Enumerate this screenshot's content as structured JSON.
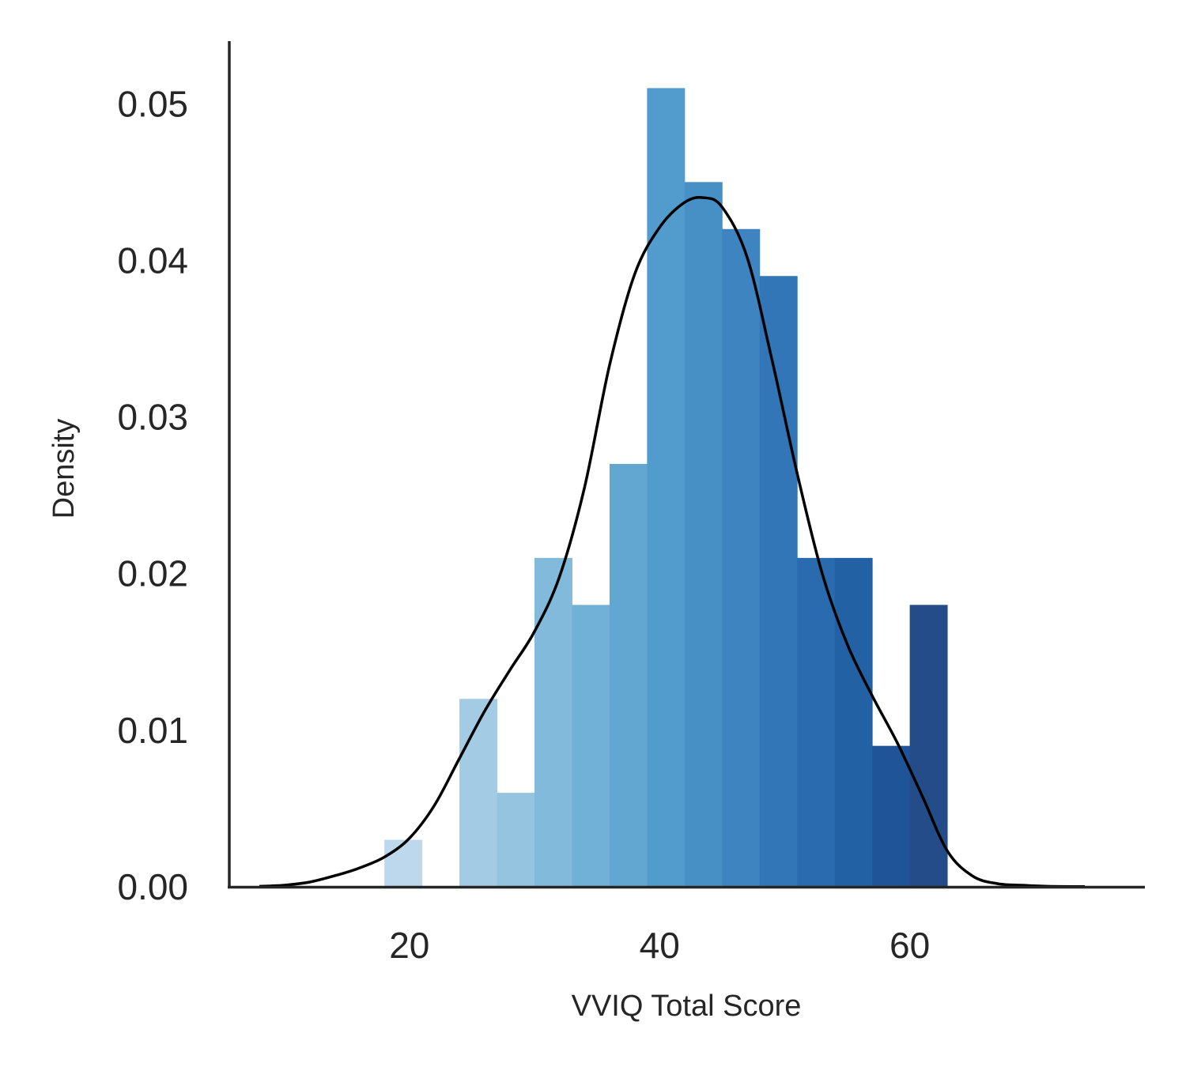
{
  "chart_data": {
    "type": "bar",
    "subtype": "histogram_with_kde",
    "xlabel": "VVIQ Total Score",
    "ylabel": "Density",
    "xlim": [
      5.6,
      78.8
    ],
    "ylim": [
      0,
      0.054
    ],
    "x_ticks": [
      20,
      40,
      60
    ],
    "y_ticks": [
      "0.00",
      "0.01",
      "0.02",
      "0.03",
      "0.04",
      "0.05"
    ],
    "grid": false,
    "bin_edges": [
      18.0,
      21.0,
      24.0,
      27.0,
      30.0,
      33.0,
      36.0,
      39.0,
      42.0,
      45.0,
      48.0,
      51.0,
      54.0,
      57.0,
      60.0,
      63.0
    ],
    "values": [
      0.003,
      0.0,
      0.012,
      0.006,
      0.021,
      0.018,
      0.027,
      0.051,
      0.045,
      0.042,
      0.039,
      0.021,
      0.021,
      0.009,
      0.018
    ],
    "bar_colors": [
      "#bdd7ec",
      "#ffffff",
      "#a3cbe3",
      "#94c4df",
      "#82badb",
      "#72b1d7",
      "#62a6d2",
      "#519ccc",
      "#4790c6",
      "#3d84c0",
      "#3276b8",
      "#2a6aae",
      "#2262a4",
      "#205498",
      "#234c88"
    ],
    "kde": {
      "color": "#000000",
      "x": [
        8,
        10,
        12,
        14,
        16,
        18,
        20,
        22,
        24,
        26,
        28,
        30,
        32,
        34,
        36,
        38,
        40,
        42,
        43.5,
        45,
        47,
        49,
        51,
        53,
        55,
        57,
        59,
        61,
        63,
        65,
        67,
        69,
        71,
        74
      ],
      "y": [
        3e-05,
        0.0001,
        0.0003,
        0.0007,
        0.0012,
        0.0019,
        0.0031,
        0.0052,
        0.0082,
        0.0112,
        0.0138,
        0.0163,
        0.0198,
        0.0255,
        0.0333,
        0.0391,
        0.0421,
        0.0437,
        0.044,
        0.0434,
        0.0402,
        0.0336,
        0.0264,
        0.02,
        0.0155,
        0.0122,
        0.0092,
        0.0058,
        0.0023,
        0.0007,
        0.0002,
        0.0001,
        3e-05,
        1e-05
      ]
    }
  }
}
